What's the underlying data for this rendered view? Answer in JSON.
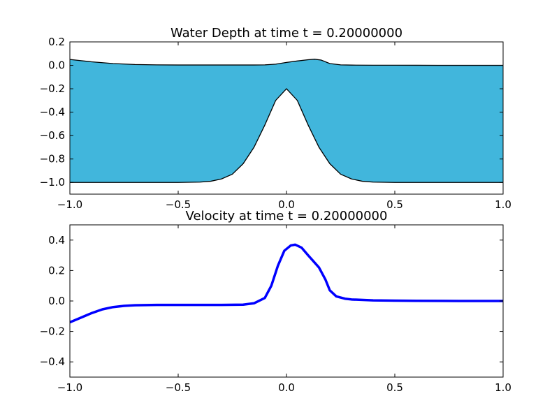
{
  "chart_data": [
    {
      "type": "area",
      "title": "Water Depth at time t =     0.20000000",
      "xlabel": "",
      "ylabel": "",
      "xlim": [
        -1.0,
        1.0
      ],
      "ylim": [
        -1.1,
        0.2
      ],
      "x_ticks": [
        "−1.0",
        "−0.5",
        "0.0",
        "0.5",
        "1.0"
      ],
      "x_tick_values": [
        -1.0,
        -0.5,
        0.0,
        0.5,
        1.0
      ],
      "y_ticks": [
        "−1.0",
        "−0.8",
        "−0.6",
        "−0.4",
        "−0.2",
        "0.0",
        "0.2"
      ],
      "y_tick_values": [
        -1.0,
        -0.8,
        -0.6,
        -0.4,
        -0.2,
        0.0,
        0.2
      ],
      "fill_color": "#41b6dc",
      "line_color": "#000000",
      "grid": false,
      "series": [
        {
          "role": "surface",
          "x": [
            -1.0,
            -0.9,
            -0.8,
            -0.7,
            -0.6,
            -0.5,
            -0.4,
            -0.3,
            -0.2,
            -0.15,
            -0.1,
            -0.05,
            0.0,
            0.05,
            0.1,
            0.13,
            0.16,
            0.2,
            0.25,
            0.3,
            0.4,
            0.5,
            0.6,
            0.7,
            0.8,
            0.9,
            1.0
          ],
          "y": [
            0.05,
            0.03,
            0.015,
            0.007,
            0.004,
            0.003,
            0.003,
            0.003,
            0.003,
            0.003,
            0.004,
            0.01,
            0.025,
            0.037,
            0.048,
            0.052,
            0.045,
            0.015,
            0.004,
            0.002,
            0.001,
            0.001,
            0.0005,
            0.0,
            0.0,
            0.0,
            0.0
          ]
        },
        {
          "role": "bottom",
          "x": [
            -1.0,
            -0.5,
            -0.4,
            -0.35,
            -0.3,
            -0.25,
            -0.2,
            -0.15,
            -0.1,
            -0.05,
            0.0,
            0.05,
            0.1,
            0.15,
            0.2,
            0.25,
            0.3,
            0.35,
            0.4,
            0.5,
            1.0
          ],
          "y": [
            -1.0,
            -1.0,
            -0.997,
            -0.99,
            -0.97,
            -0.93,
            -0.84,
            -0.7,
            -0.51,
            -0.3,
            -0.2,
            -0.3,
            -0.51,
            -0.7,
            -0.84,
            -0.93,
            -0.97,
            -0.99,
            -0.997,
            -1.0,
            -1.0
          ]
        }
      ]
    },
    {
      "type": "line",
      "title": "Velocity at time t =     0.20000000",
      "xlabel": "",
      "ylabel": "",
      "xlim": [
        -1.0,
        1.0
      ],
      "ylim": [
        -0.5,
        0.5
      ],
      "x_ticks": [
        "−1.0",
        "−0.5",
        "0.0",
        "0.5",
        "1.0"
      ],
      "x_tick_values": [
        -1.0,
        -0.5,
        0.0,
        0.5,
        1.0
      ],
      "y_ticks": [
        "−0.4",
        "−0.2",
        "0.0",
        "0.2",
        "0.4"
      ],
      "y_tick_values": [
        -0.4,
        -0.2,
        0.0,
        0.2,
        0.4
      ],
      "line_color": "#0000ff",
      "grid": false,
      "series": [
        {
          "x": [
            -1.0,
            -0.95,
            -0.9,
            -0.85,
            -0.8,
            -0.75,
            -0.7,
            -0.6,
            -0.5,
            -0.4,
            -0.3,
            -0.2,
            -0.15,
            -0.1,
            -0.07,
            -0.04,
            -0.01,
            0.02,
            0.04,
            0.07,
            0.1,
            0.15,
            0.18,
            0.2,
            0.23,
            0.27,
            0.3,
            0.4,
            0.5,
            0.6,
            0.8,
            1.0
          ],
          "y": [
            -0.14,
            -0.11,
            -0.08,
            -0.055,
            -0.04,
            -0.032,
            -0.028,
            -0.026,
            -0.026,
            -0.026,
            -0.026,
            -0.024,
            -0.015,
            0.02,
            0.1,
            0.23,
            0.33,
            0.365,
            0.37,
            0.35,
            0.3,
            0.22,
            0.14,
            0.07,
            0.03,
            0.015,
            0.01,
            0.004,
            0.002,
            0.001,
            0.0,
            0.0
          ]
        }
      ]
    }
  ]
}
